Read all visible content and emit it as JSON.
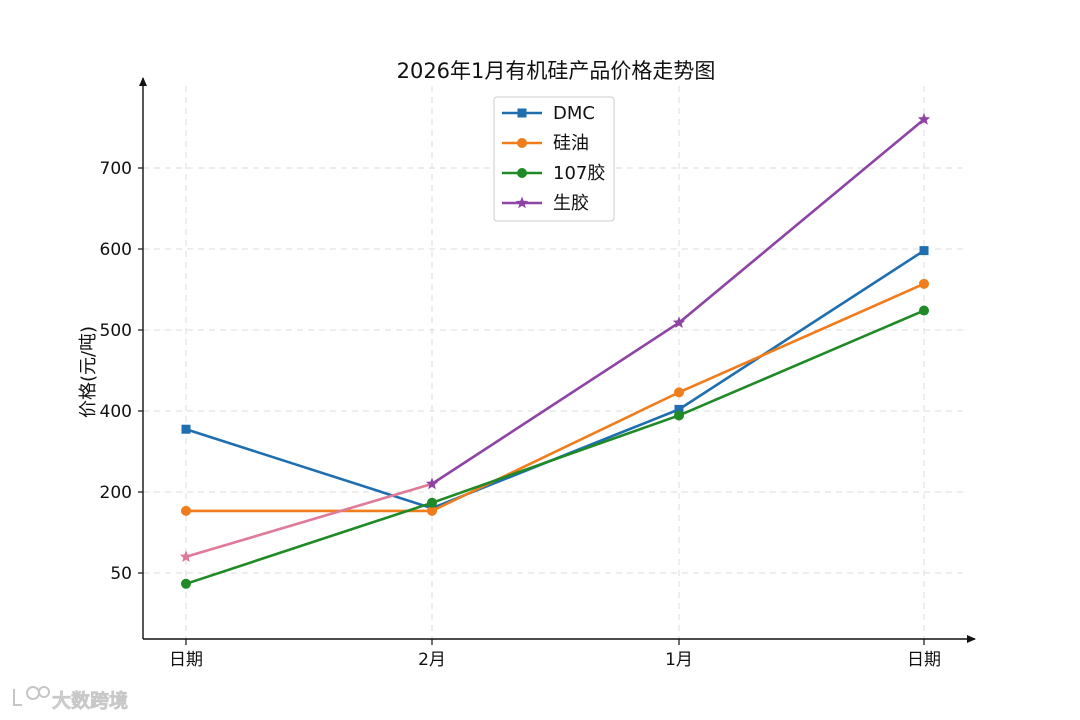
{
  "chart_data": {
    "type": "line",
    "title": "2026年1月有机硅产品价格走势图",
    "xlabel": "",
    "ylabel": "价格(元/吨)",
    "categories": [
      "日期",
      "2月",
      "1月",
      "日期"
    ],
    "y_ticks": [
      50,
      200,
      400,
      500,
      600,
      700
    ],
    "y_tick_labels": [
      "50",
      "200",
      "400",
      "500",
      "600",
      "700"
    ],
    "grid": true,
    "legend_position": "top-center",
    "series": [
      {
        "name": "DMC",
        "color": "#1f6fb0",
        "marker": "square",
        "values": [
          355,
          170,
          402,
          598
        ]
      },
      {
        "name": "硅油",
        "color": "#f07c1c",
        "marker": "circle",
        "values": [
          165,
          165,
          423,
          557
        ]
      },
      {
        "name": "107胶",
        "color": "#1f8a26",
        "marker": "circle",
        "values": [
          30,
          180,
          389,
          524
        ]
      },
      {
        "name": "生胶",
        "color": "#8e44a5",
        "marker": "star",
        "values": [
          80,
          220,
          509,
          760
        ],
        "first_segment_color": "#e07a99"
      }
    ]
  },
  "watermark": {
    "text": "大数跨境",
    "icon": "lq-logo-icon"
  }
}
